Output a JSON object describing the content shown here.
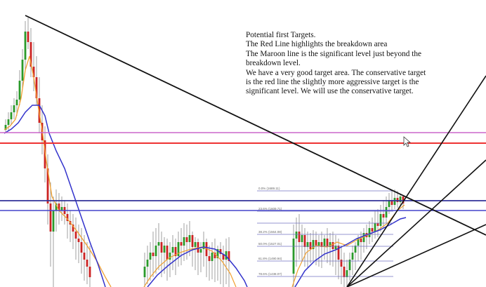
{
  "annotation": {
    "lines": [
      "Potential first Targets.",
      "The Red Line highlights the breakdown area",
      "The Maroon line is the significant level just beyond the",
      "breakdown level.",
      "We have a very good target area.  The conservative target",
      "is the red line the slightly more aggressive target is the",
      "significant level.  We will use the conservative target."
    ]
  },
  "fib_levels": [
    "0.0% (1689.11)",
    "23.6% (1609.71)",
    "38.2% (1564.08)",
    "50.0% (1527.01)",
    "61.8% (1490.94)",
    "78.6% (1438.07)"
  ],
  "colors": {
    "trendline": "#111111",
    "horizontal_magenta": "#cc66cc",
    "horizontal_red": "#ee3333",
    "horizontal_blue": "#3333bb",
    "moving_average_blue": "#3333cc",
    "moving_average_orange": "#f0a030",
    "candle_up": "#2a9a2a",
    "candle_down": "#cc2222",
    "fib_lines": "#7070c0"
  },
  "icons": {
    "cursor": "mouse-cursor-icon"
  }
}
